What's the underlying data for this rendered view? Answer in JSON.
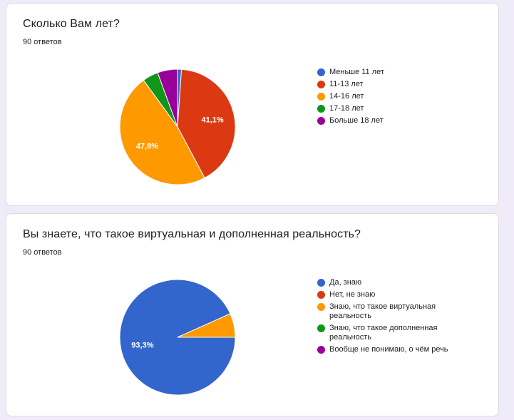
{
  "questions": [
    {
      "title": "Сколько Вам лет?",
      "responses": "90 ответов"
    },
    {
      "title": "Вы знаете, что такое виртуальная и дополненная реальность?",
      "responses": "90 ответов"
    }
  ],
  "chart_data": [
    {
      "type": "pie",
      "title": "Сколько Вам лет?",
      "categories": [
        "Меньше 11 лет",
        "11-13 лет",
        "14-16 лет",
        "17-18 лет",
        "Больше 18 лет"
      ],
      "values": [
        1.1,
        41.1,
        47.8,
        4.4,
        5.6
      ],
      "colors": [
        "#3366cc",
        "#dc3912",
        "#ff9900",
        "#109618",
        "#990099"
      ],
      "labels_shown": [
        "",
        "41,1%",
        "47,8%",
        "",
        ""
      ],
      "legend": "right"
    },
    {
      "type": "pie",
      "title": "Вы знаете, что такое виртуальная и дополненная реальность?",
      "categories": [
        "Да, знаю",
        "Нет, не знаю",
        "Знаю, что такое виртуальная реальность",
        "Знаю, что такое дополненная реальность",
        "Вообще не понимаю, о чём речь"
      ],
      "values": [
        93.3,
        0,
        6.7,
        0,
        0
      ],
      "colors": [
        "#3366cc",
        "#dc3912",
        "#ff9900",
        "#109618",
        "#990099"
      ],
      "labels_shown": [
        "93,3%",
        "",
        "",
        "",
        ""
      ],
      "legend": "right"
    }
  ]
}
